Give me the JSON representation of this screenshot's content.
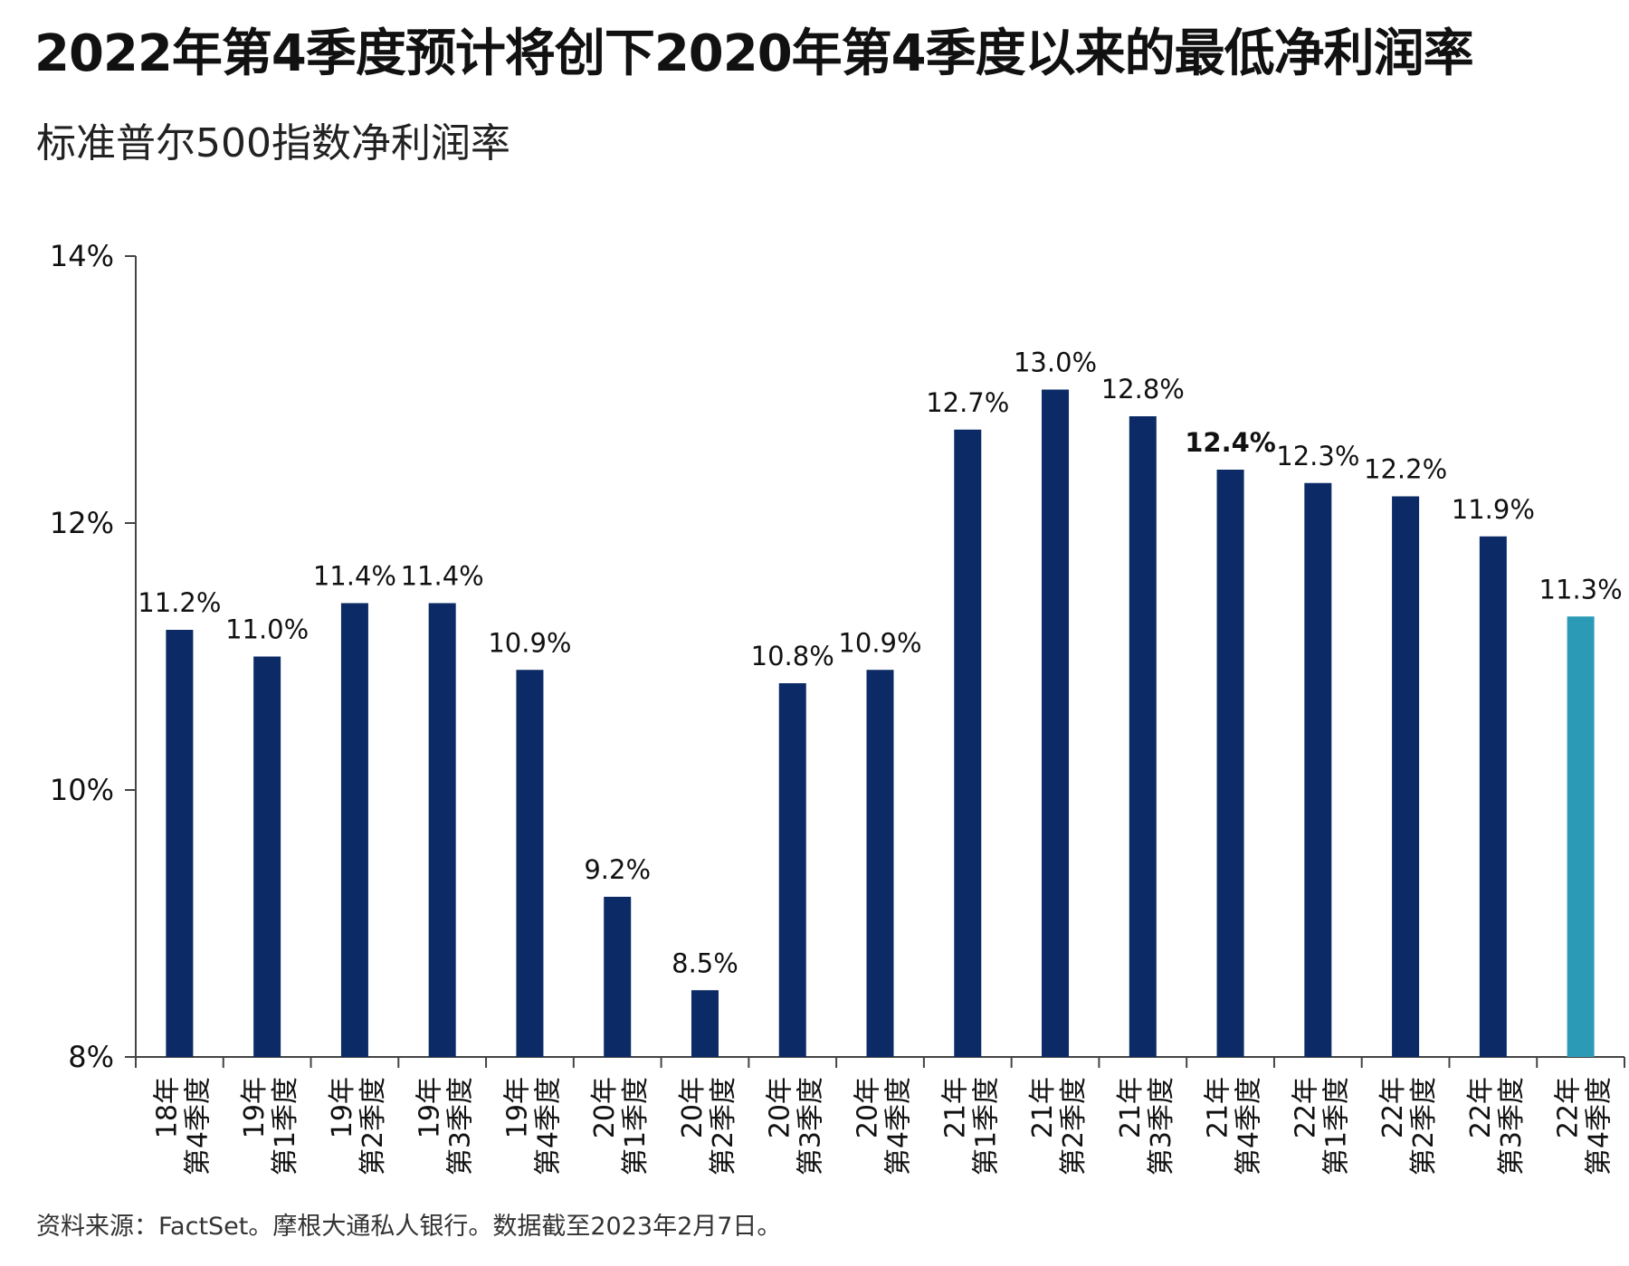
{
  "title": "2022年第4季度预计将创下2020年第4季度以来的最低净利润率",
  "subtitle": "标准普尔500指数净利润率",
  "source": "资料来源：FactSet。摩根大通私人银行。数据截至2023年2月7日。",
  "colors": {
    "bar": "#0b2a66",
    "highlight": "#2b9ab6",
    "axis": "#444444"
  },
  "chart_data": {
    "type": "bar",
    "title": "标准普尔500指数净利润率",
    "categories": [
      {
        "year": "18年",
        "quarter": "第4季度"
      },
      {
        "year": "19年",
        "quarter": "第1季度"
      },
      {
        "year": "19年",
        "quarter": "第2季度"
      },
      {
        "year": "19年",
        "quarter": "第3季度"
      },
      {
        "year": "19年",
        "quarter": "第4季度"
      },
      {
        "year": "20年",
        "quarter": "第1季度"
      },
      {
        "year": "20年",
        "quarter": "第2季度"
      },
      {
        "year": "20年",
        "quarter": "第3季度"
      },
      {
        "year": "20年",
        "quarter": "第4季度"
      },
      {
        "year": "21年",
        "quarter": "第1季度"
      },
      {
        "year": "21年",
        "quarter": "第2季度"
      },
      {
        "year": "21年",
        "quarter": "第3季度"
      },
      {
        "year": "21年",
        "quarter": "第4季度"
      },
      {
        "year": "22年",
        "quarter": "第1季度"
      },
      {
        "year": "22年",
        "quarter": "第2季度"
      },
      {
        "year": "22年",
        "quarter": "第3季度"
      },
      {
        "year": "22年",
        "quarter": "第4季度"
      }
    ],
    "values": [
      11.2,
      11.0,
      11.4,
      11.4,
      10.9,
      9.2,
      8.5,
      10.8,
      10.9,
      12.7,
      13.0,
      12.8,
      12.4,
      12.3,
      12.2,
      11.9,
      11.3
    ],
    "data_labels": [
      "11.2%",
      "11.0%",
      "11.4%",
      "11.4%",
      "10.9%",
      "9.2%",
      "8.5%",
      "10.8%",
      "10.9%",
      "12.7%",
      "13.0%",
      "12.8%",
      "12.4%",
      "12.3%",
      "12.2%",
      "11.9%",
      "11.3%"
    ],
    "bold_labels": [
      12
    ],
    "highlight_index": 16,
    "ylim": [
      8,
      14
    ],
    "yticks": [
      {
        "value": 14,
        "label": "14%"
      },
      {
        "value": 12,
        "label": "12%"
      },
      {
        "value": 10,
        "label": "10%"
      },
      {
        "value": 8,
        "label": "8%"
      }
    ],
    "grid": false,
    "legend": "none"
  }
}
